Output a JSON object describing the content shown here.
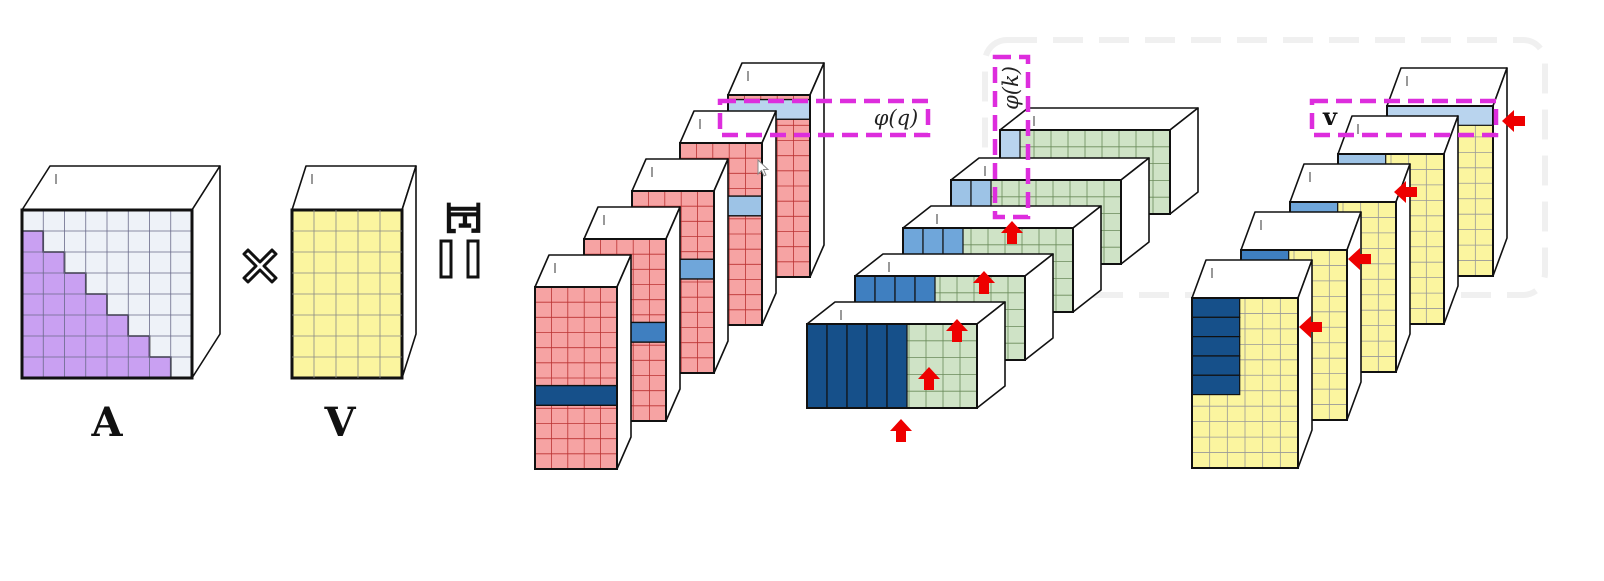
{
  "labels": {
    "matrix_a": "A",
    "matrix_v": "V",
    "phi_q": "φ(q)",
    "phi_k": "φ(k)",
    "v_small": "v"
  },
  "symbols": {
    "times": "✖",
    "expectation": "𝔼",
    "equals": "="
  },
  "colors": {
    "lower_triangle": "#c9a0f2",
    "upper_triangle": "#eef2f8",
    "value": "#fbf59f",
    "query": "#f6a3a3",
    "key": "#cfe3c6",
    "highlight_light": "#b9d4ee",
    "blue_1": "#9dc3e6",
    "blue_2": "#6fa6da",
    "blue_3": "#3f7fc0",
    "blue_4": "#245f9e",
    "blue_5": "#16508a",
    "dashed_box": "#dd2ddd",
    "arrow": "#ee0000"
  },
  "icons": [
    "multiply-icon",
    "expectation-equals-icon",
    "red-arrow-icon",
    "cursor-icon"
  ]
}
